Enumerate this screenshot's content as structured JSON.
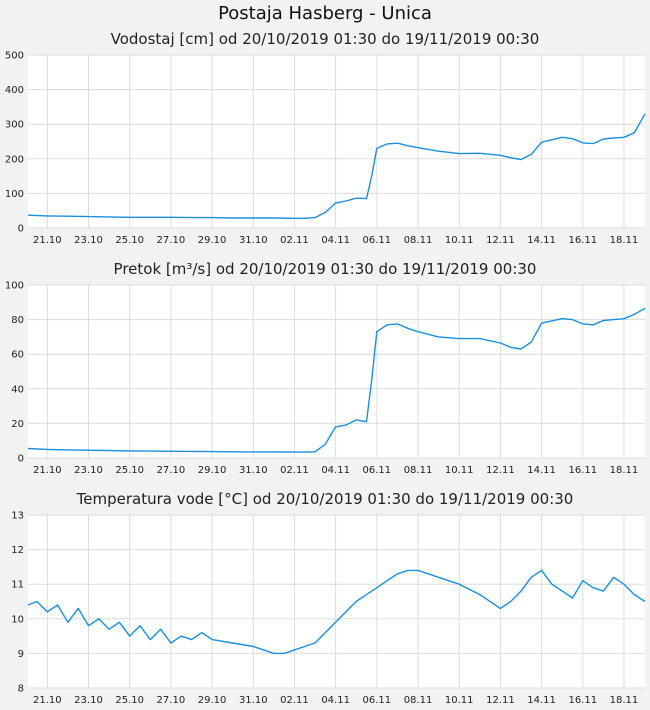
{
  "page": {
    "title": "Postaja Hasberg - Unica"
  },
  "charts": [
    {
      "title": "Vodostaj [cm] od 20/10/2019 01:30 do 19/11/2019 00:30",
      "y_ticks": [
        "0",
        "100",
        "200",
        "300",
        "400",
        "500"
      ]
    },
    {
      "title": "Pretok [m³/s] od 20/10/2019 01:30 do 19/11/2019 00:30",
      "y_ticks": [
        "0",
        "20",
        "40",
        "60",
        "80",
        "100"
      ]
    },
    {
      "title": "Temperatura vode [°C] od 20/10/2019 01:30 do 19/11/2019 00:30",
      "y_ticks": [
        "8",
        "9",
        "10",
        "11",
        "12",
        "13"
      ]
    }
  ],
  "x_ticks": [
    "21.10",
    "23.10",
    "25.10",
    "27.10",
    "29.10",
    "31.10",
    "02.11",
    "04.11",
    "06.11",
    "08.11",
    "10.11",
    "12.11",
    "14.11",
    "16.11",
    "18.11"
  ],
  "colors": {
    "line": "#1a8fdc",
    "grid": "#dcdcdc",
    "plot_bg": "#ffffff"
  },
  "chart_data": [
    {
      "type": "line",
      "title": "Vodostaj [cm] od 20/10/2019 01:30 do 19/11/2019 00:30",
      "xlabel": "",
      "ylabel": "",
      "ylim": [
        0,
        500
      ],
      "x_range": [
        "2019-10-20T01:30",
        "2019-11-19T00:30"
      ],
      "x_ticks": [
        "21.10",
        "23.10",
        "25.10",
        "27.10",
        "29.10",
        "31.10",
        "02.11",
        "04.11",
        "06.11",
        "08.11",
        "10.11",
        "12.11",
        "14.11",
        "16.11",
        "18.11"
      ],
      "grid": true,
      "series": [
        {
          "x": [
            "2019-10-20T01:30",
            "2019-10-21T00:00",
            "2019-10-22T00:00",
            "2019-10-23T00:00",
            "2019-10-24T00:00",
            "2019-10-25T00:00",
            "2019-10-26T00:00",
            "2019-10-27T00:00",
            "2019-10-28T00:00",
            "2019-10-29T00:00",
            "2019-10-30T00:00",
            "2019-10-31T00:00",
            "2019-11-01T00:00",
            "2019-11-02T00:00",
            "2019-11-02T12:00",
            "2019-11-03T00:00",
            "2019-11-03T12:00",
            "2019-11-04T00:00",
            "2019-11-04T12:00",
            "2019-11-05T00:00",
            "2019-11-05T12:00",
            "2019-11-05T18:00",
            "2019-11-06T00:00",
            "2019-11-06T12:00",
            "2019-11-07T00:00",
            "2019-11-07T12:00",
            "2019-11-08T00:00",
            "2019-11-09T00:00",
            "2019-11-10T00:00",
            "2019-11-11T00:00",
            "2019-11-12T00:00",
            "2019-11-12T12:00",
            "2019-11-13T00:00",
            "2019-11-13T12:00",
            "2019-11-14T00:00",
            "2019-11-15T00:00",
            "2019-11-15T12:00",
            "2019-11-16T00:00",
            "2019-11-16T12:00",
            "2019-11-17T00:00",
            "2019-11-17T12:00",
            "2019-11-18T00:00",
            "2019-11-18T12:00",
            "2019-11-19T00:30"
          ],
          "y": [
            37,
            35,
            34,
            33,
            32,
            31,
            31,
            31,
            30,
            30,
            29,
            29,
            29,
            28,
            28,
            30,
            45,
            72,
            78,
            86,
            85,
            150,
            230,
            243,
            245,
            238,
            232,
            222,
            215,
            216,
            210,
            203,
            198,
            213,
            248,
            262,
            258,
            246,
            244,
            257,
            260,
            262,
            275,
            330
          ]
        }
      ]
    },
    {
      "type": "line",
      "title": "Pretok [m³/s] od 20/10/2019 01:30 do 19/11/2019 00:30",
      "xlabel": "",
      "ylabel": "",
      "ylim": [
        0,
        100
      ],
      "x_range": [
        "2019-10-20T01:30",
        "2019-11-19T00:30"
      ],
      "x_ticks": [
        "21.10",
        "23.10",
        "25.10",
        "27.10",
        "29.10",
        "31.10",
        "02.11",
        "04.11",
        "06.11",
        "08.11",
        "10.11",
        "12.11",
        "14.11",
        "16.11",
        "18.11"
      ],
      "grid": true,
      "series": [
        {
          "x": [
            "2019-10-20T01:30",
            "2019-10-21T00:00",
            "2019-10-22T00:00",
            "2019-10-23T00:00",
            "2019-10-24T00:00",
            "2019-10-25T00:00",
            "2019-10-26T00:00",
            "2019-10-27T00:00",
            "2019-10-28T00:00",
            "2019-10-29T00:00",
            "2019-10-30T00:00",
            "2019-10-31T00:00",
            "2019-11-01T00:00",
            "2019-11-02T00:00",
            "2019-11-02T12:00",
            "2019-11-03T00:00",
            "2019-11-03T12:00",
            "2019-11-04T00:00",
            "2019-11-04T12:00",
            "2019-11-05T00:00",
            "2019-11-05T12:00",
            "2019-11-05T18:00",
            "2019-11-06T00:00",
            "2019-11-06T12:00",
            "2019-11-07T00:00",
            "2019-11-07T12:00",
            "2019-11-08T00:00",
            "2019-11-09T00:00",
            "2019-11-10T00:00",
            "2019-11-11T00:00",
            "2019-11-12T00:00",
            "2019-11-12T12:00",
            "2019-11-13T00:00",
            "2019-11-13T12:00",
            "2019-11-14T00:00",
            "2019-11-15T00:00",
            "2019-11-15T12:00",
            "2019-11-16T00:00",
            "2019-11-16T12:00",
            "2019-11-17T00:00",
            "2019-11-17T12:00",
            "2019-11-18T00:00",
            "2019-11-18T12:00",
            "2019-11-19T00:30"
          ],
          "y": [
            5.5,
            5,
            4.7,
            4.5,
            4.3,
            4.1,
            4,
            3.9,
            3.8,
            3.7,
            3.6,
            3.5,
            3.5,
            3.4,
            3.4,
            3.6,
            8,
            18,
            19,
            22,
            21,
            45,
            73,
            77,
            77.5,
            75,
            73,
            70,
            69,
            69,
            66.5,
            64,
            63,
            67,
            78,
            80.5,
            80,
            77.5,
            77,
            79.5,
            80,
            80.5,
            83,
            86.5
          ]
        }
      ]
    },
    {
      "type": "line",
      "title": "Temperatura vode [°C] od 20/10/2019 01:30 do 19/11/2019 00:30",
      "xlabel": "",
      "ylabel": "",
      "ylim": [
        8,
        13
      ],
      "x_range": [
        "2019-10-20T01:30",
        "2019-11-19T00:30"
      ],
      "x_ticks": [
        "21.10",
        "23.10",
        "25.10",
        "27.10",
        "29.10",
        "31.10",
        "02.11",
        "04.11",
        "06.11",
        "08.11",
        "10.11",
        "12.11",
        "14.11",
        "16.11",
        "18.11"
      ],
      "grid": true,
      "series": [
        {
          "x": [
            "2019-10-20T01:30",
            "2019-10-20T12:00",
            "2019-10-21T00:00",
            "2019-10-21T12:00",
            "2019-10-22T00:00",
            "2019-10-22T12:00",
            "2019-10-23T00:00",
            "2019-10-23T12:00",
            "2019-10-24T00:00",
            "2019-10-24T12:00",
            "2019-10-25T00:00",
            "2019-10-25T12:00",
            "2019-10-26T00:00",
            "2019-10-26T12:00",
            "2019-10-27T00:00",
            "2019-10-27T12:00",
            "2019-10-28T00:00",
            "2019-10-28T12:00",
            "2019-10-29T00:00",
            "2019-10-30T00:00",
            "2019-10-31T00:00",
            "2019-10-31T12:00",
            "2019-11-01T00:00",
            "2019-11-01T12:00",
            "2019-11-02T00:00",
            "2019-11-02T12:00",
            "2019-11-03T00:00",
            "2019-11-03T12:00",
            "2019-11-04T00:00",
            "2019-11-04T12:00",
            "2019-11-05T00:00",
            "2019-11-05T12:00",
            "2019-11-06T00:00",
            "2019-11-06T12:00",
            "2019-11-07T00:00",
            "2019-11-07T12:00",
            "2019-11-08T00:00",
            "2019-11-08T12:00",
            "2019-11-09T00:00",
            "2019-11-10T00:00",
            "2019-11-11T00:00",
            "2019-11-11T12:00",
            "2019-11-12T00:00",
            "2019-11-12T12:00",
            "2019-11-13T00:00",
            "2019-11-13T12:00",
            "2019-11-14T00:00",
            "2019-11-14T12:00",
            "2019-11-15T00:00",
            "2019-11-15T12:00",
            "2019-11-16T00:00",
            "2019-11-16T12:00",
            "2019-11-17T00:00",
            "2019-11-17T12:00",
            "2019-11-18T00:00",
            "2019-11-18T12:00",
            "2019-11-19T00:30"
          ],
          "y": [
            10.4,
            10.5,
            10.2,
            10.4,
            9.9,
            10.3,
            9.8,
            10.0,
            9.7,
            9.9,
            9.5,
            9.8,
            9.4,
            9.7,
            9.3,
            9.5,
            9.4,
            9.6,
            9.4,
            9.3,
            9.2,
            9.1,
            9.0,
            9.0,
            9.1,
            9.2,
            9.3,
            9.6,
            9.9,
            10.2,
            10.5,
            10.7,
            10.9,
            11.1,
            11.3,
            11.4,
            11.4,
            11.3,
            11.2,
            11.0,
            10.7,
            10.5,
            10.3,
            10.5,
            10.8,
            11.2,
            11.4,
            11.0,
            10.8,
            10.6,
            11.1,
            10.9,
            10.8,
            11.2,
            11.0,
            10.7,
            10.5
          ]
        }
      ]
    }
  ]
}
